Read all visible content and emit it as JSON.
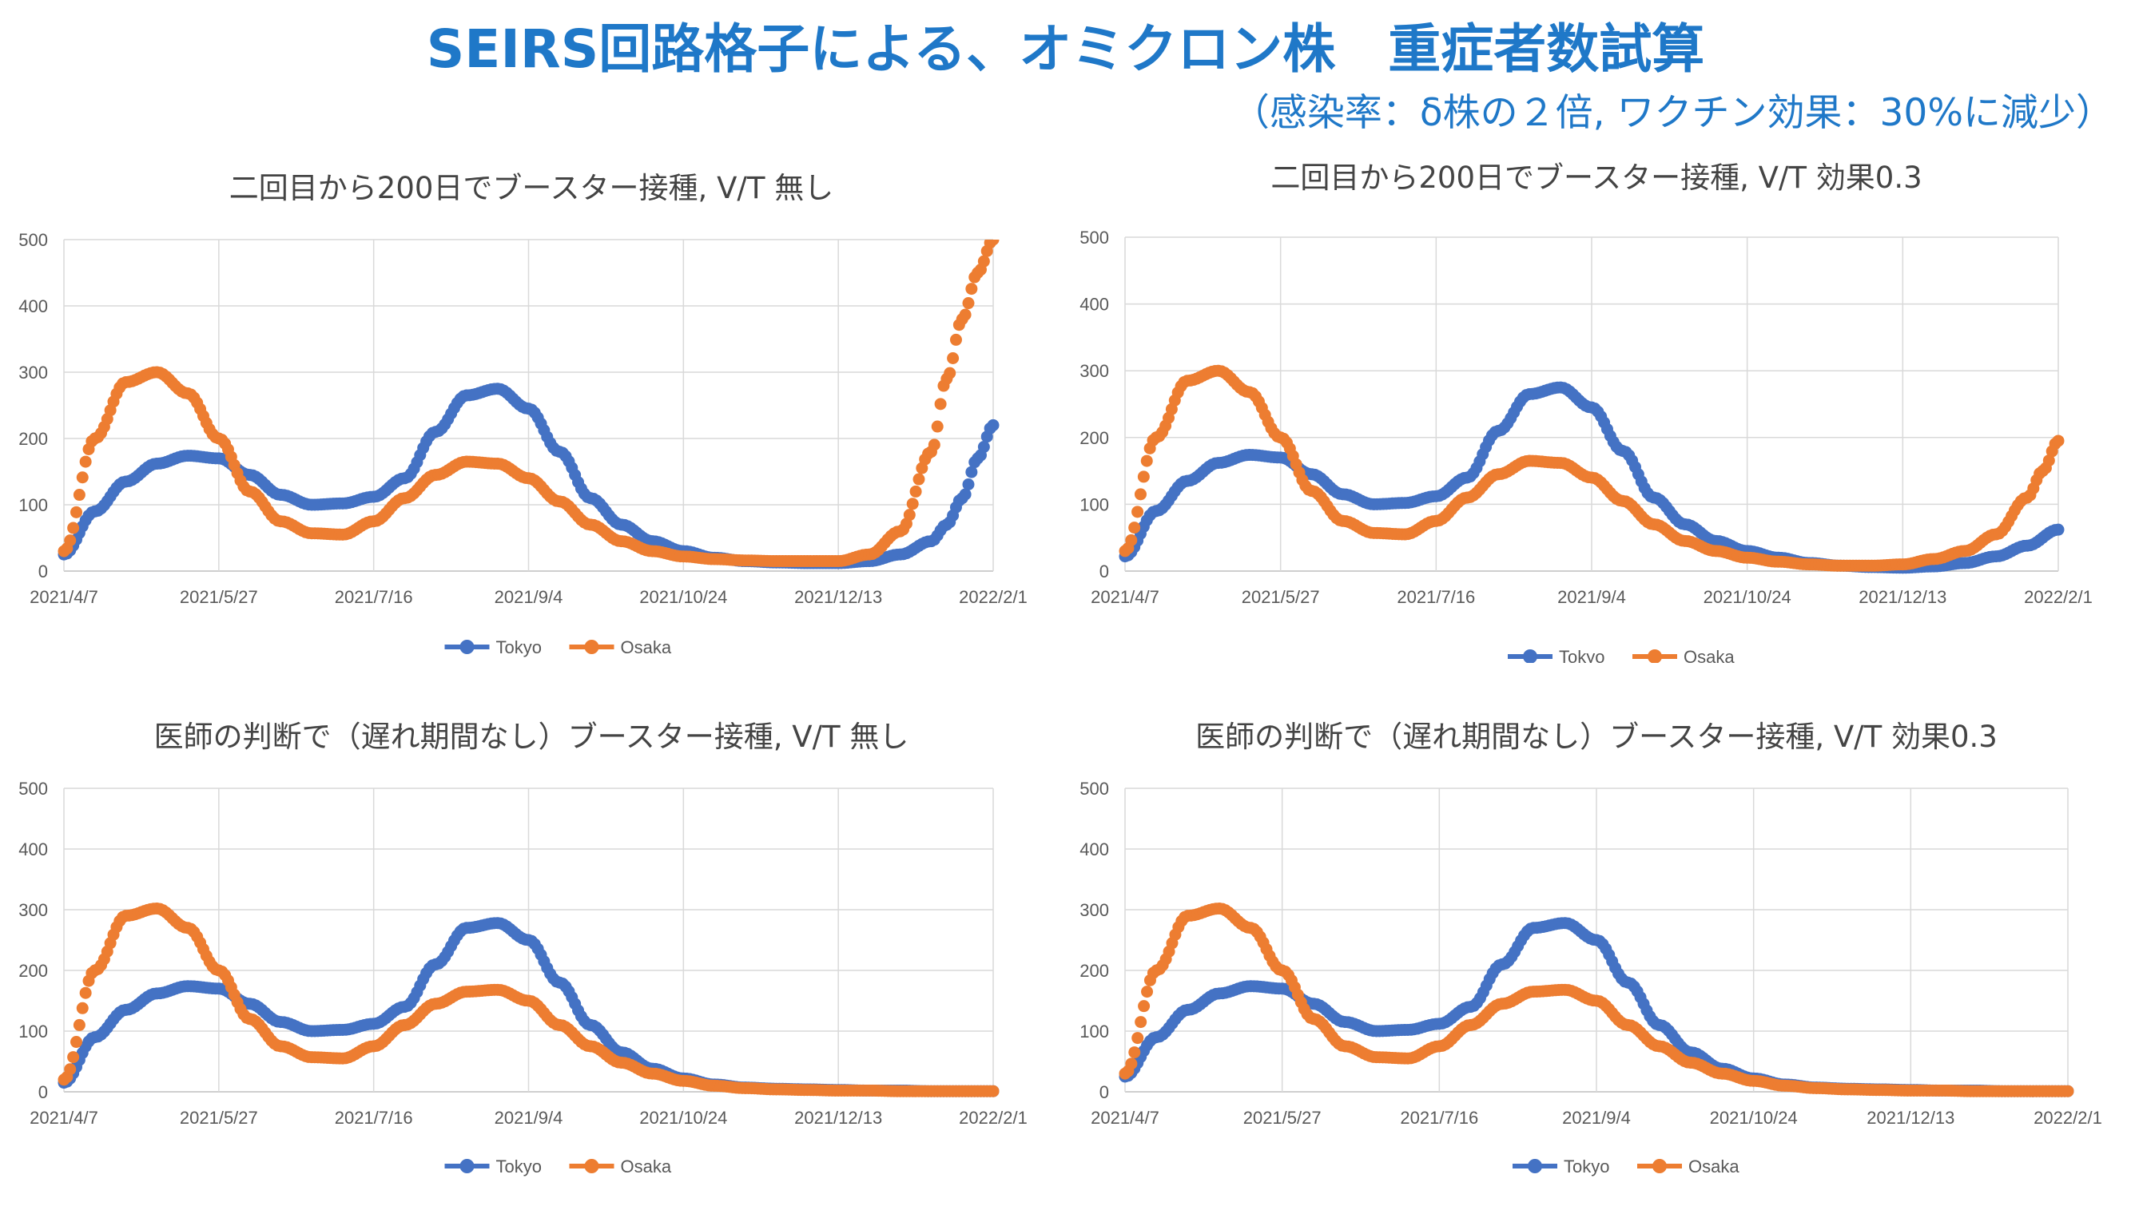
{
  "title": "SEIRS回路格子による、オミクロン株　重症者数試算",
  "subtitle": "（感染率：δ株の２倍, ワクチン効果：30%に減少）",
  "chart_data": [
    {
      "type": "line",
      "title": "二回目から200日でブースター接種, V/T 無し",
      "x_ticks": [
        "2021/4/7",
        "2021/5/27",
        "2021/7/16",
        "2021/9/4",
        "2021/10/24",
        "2021/12/13",
        "2022/2/1"
      ],
      "x_range": [
        "2021/4/7",
        "2022/2/1"
      ],
      "ylim": [
        0,
        500
      ],
      "y_ticks": [
        0,
        100,
        200,
        300,
        400,
        500
      ],
      "grid": true,
      "legend": "bottom",
      "series": [
        {
          "name": "Tokyo",
          "color": "#4472C4",
          "x": [
            "2021/4/7",
            "2021/4/17",
            "2021/4/27",
            "2021/5/7",
            "2021/5/17",
            "2021/5/27",
            "2021/6/6",
            "2021/6/16",
            "2021/6/26",
            "2021/7/6",
            "2021/7/16",
            "2021/7/26",
            "2021/8/5",
            "2021/8/15",
            "2021/8/25",
            "2021/9/4",
            "2021/9/14",
            "2021/9/24",
            "2021/10/4",
            "2021/10/14",
            "2021/10/24",
            "2021/11/3",
            "2021/11/13",
            "2021/11/23",
            "2021/12/3",
            "2021/12/13",
            "2021/12/23",
            "2022/1/2",
            "2022/1/12",
            "2022/1/17",
            "2022/1/22",
            "2022/1/27",
            "2022/2/1"
          ],
          "y": [
            25,
            90,
            135,
            162,
            174,
            170,
            145,
            115,
            100,
            102,
            112,
            140,
            210,
            265,
            275,
            245,
            180,
            110,
            70,
            45,
            30,
            20,
            15,
            13,
            12,
            12,
            15,
            25,
            45,
            70,
            110,
            170,
            220
          ]
        },
        {
          "name": "Osaka",
          "color": "#ED7D31",
          "x": [
            "2021/4/7",
            "2021/4/17",
            "2021/4/27",
            "2021/5/7",
            "2021/5/17",
            "2021/5/27",
            "2021/6/6",
            "2021/6/16",
            "2021/6/26",
            "2021/7/6",
            "2021/7/16",
            "2021/7/26",
            "2021/8/5",
            "2021/8/15",
            "2021/8/25",
            "2021/9/4",
            "2021/9/14",
            "2021/9/24",
            "2021/10/4",
            "2021/10/14",
            "2021/10/24",
            "2021/11/3",
            "2021/11/13",
            "2021/11/23",
            "2021/12/3",
            "2021/12/13",
            "2021/12/23",
            "2022/1/2",
            "2022/1/12",
            "2022/1/17",
            "2022/1/22",
            "2022/1/27",
            "2022/2/1"
          ],
          "y": [
            30,
            200,
            285,
            300,
            268,
            200,
            120,
            75,
            57,
            55,
            75,
            110,
            145,
            165,
            162,
            140,
            105,
            70,
            45,
            30,
            22,
            18,
            16,
            15,
            15,
            15,
            25,
            60,
            180,
            290,
            380,
            450,
            500
          ]
        }
      ]
    },
    {
      "type": "line",
      "title": "二回目から200日でブースター接種, V/T 効果0.3",
      "x_ticks": [
        "2021/4/7",
        "2021/5/27",
        "2021/7/16",
        "2021/9/4",
        "2021/10/24",
        "2021/12/13",
        "2022/2/1"
      ],
      "x_range": [
        "2021/4/7",
        "2022/2/1"
      ],
      "ylim": [
        0,
        500
      ],
      "y_ticks": [
        0,
        100,
        200,
        300,
        400,
        500
      ],
      "grid": true,
      "legend": "bottom",
      "series": [
        {
          "name": "Tokyo",
          "color": "#4472C4",
          "x": [
            "2021/4/7",
            "2021/4/17",
            "2021/4/27",
            "2021/5/7",
            "2021/5/17",
            "2021/5/27",
            "2021/6/6",
            "2021/6/16",
            "2021/6/26",
            "2021/7/6",
            "2021/7/16",
            "2021/7/26",
            "2021/8/5",
            "2021/8/15",
            "2021/8/25",
            "2021/9/4",
            "2021/9/14",
            "2021/9/24",
            "2021/10/4",
            "2021/10/14",
            "2021/10/24",
            "2021/11/3",
            "2021/11/13",
            "2021/11/23",
            "2021/12/3",
            "2021/12/13",
            "2021/12/23",
            "2022/1/2",
            "2022/1/12",
            "2022/1/22",
            "2022/2/1"
          ],
          "y": [
            22,
            90,
            135,
            162,
            174,
            170,
            145,
            115,
            100,
            102,
            112,
            140,
            210,
            265,
            275,
            245,
            180,
            110,
            70,
            45,
            30,
            20,
            12,
            8,
            6,
            5,
            7,
            12,
            22,
            38,
            62
          ]
        },
        {
          "name": "Osaka",
          "color": "#ED7D31",
          "x": [
            "2021/4/7",
            "2021/4/17",
            "2021/4/27",
            "2021/5/7",
            "2021/5/17",
            "2021/5/27",
            "2021/6/6",
            "2021/6/16",
            "2021/6/26",
            "2021/7/6",
            "2021/7/16",
            "2021/7/26",
            "2021/8/5",
            "2021/8/15",
            "2021/8/25",
            "2021/9/4",
            "2021/9/14",
            "2021/9/24",
            "2021/10/4",
            "2021/10/14",
            "2021/10/24",
            "2021/11/3",
            "2021/11/13",
            "2021/11/23",
            "2021/12/3",
            "2021/12/13",
            "2021/12/23",
            "2022/1/2",
            "2022/1/12",
            "2022/1/22",
            "2022/1/27",
            "2022/2/1"
          ],
          "y": [
            30,
            200,
            285,
            300,
            268,
            200,
            120,
            75,
            57,
            55,
            75,
            110,
            145,
            165,
            162,
            140,
            105,
            70,
            45,
            30,
            20,
            14,
            10,
            8,
            8,
            10,
            18,
            30,
            55,
            110,
            150,
            195
          ]
        }
      ]
    },
    {
      "type": "line",
      "title": "医師の判断で（遅れ期間なし）ブースター接種, V/T 無し",
      "x_ticks": [
        "2021/4/7",
        "2021/5/27",
        "2021/7/16",
        "2021/9/4",
        "2021/10/24",
        "2021/12/13",
        "2022/2/1"
      ],
      "x_range": [
        "2021/4/7",
        "2022/2/1"
      ],
      "ylim": [
        0,
        500
      ],
      "y_ticks": [
        0,
        100,
        200,
        300,
        400,
        500
      ],
      "grid": true,
      "legend": "bottom",
      "series": [
        {
          "name": "Tokyo",
          "color": "#4472C4",
          "x": [
            "2021/4/7",
            "2021/4/17",
            "2021/4/27",
            "2021/5/7",
            "2021/5/17",
            "2021/5/27",
            "2021/6/6",
            "2021/6/16",
            "2021/6/26",
            "2021/7/6",
            "2021/7/16",
            "2021/7/26",
            "2021/8/5",
            "2021/8/15",
            "2021/8/25",
            "2021/9/4",
            "2021/9/14",
            "2021/9/24",
            "2021/10/4",
            "2021/10/14",
            "2021/10/24",
            "2021/11/3",
            "2021/11/13",
            "2021/11/23",
            "2021/12/3",
            "2021/12/13",
            "2021/12/23",
            "2022/1/2",
            "2022/1/12",
            "2022/1/22",
            "2022/2/1"
          ],
          "y": [
            15,
            90,
            135,
            162,
            174,
            170,
            145,
            115,
            100,
            102,
            112,
            140,
            210,
            270,
            278,
            250,
            180,
            110,
            65,
            38,
            22,
            12,
            7,
            5,
            4,
            3,
            2,
            2,
            1,
            1,
            1
          ]
        },
        {
          "name": "Osaka",
          "color": "#ED7D31",
          "x": [
            "2021/4/7",
            "2021/4/17",
            "2021/4/27",
            "2021/5/7",
            "2021/5/17",
            "2021/5/27",
            "2021/6/6",
            "2021/6/16",
            "2021/6/26",
            "2021/7/6",
            "2021/7/16",
            "2021/7/26",
            "2021/8/5",
            "2021/8/15",
            "2021/8/25",
            "2021/9/4",
            "2021/9/14",
            "2021/9/24",
            "2021/10/4",
            "2021/10/14",
            "2021/10/24",
            "2021/11/3",
            "2021/11/13",
            "2021/11/23",
            "2021/12/3",
            "2021/12/13",
            "2021/12/23",
            "2022/1/2",
            "2022/1/12",
            "2022/1/22",
            "2022/2/1"
          ],
          "y": [
            20,
            200,
            290,
            302,
            270,
            200,
            120,
            75,
            57,
            55,
            75,
            110,
            145,
            165,
            168,
            150,
            110,
            75,
            48,
            30,
            18,
            10,
            6,
            4,
            3,
            2,
            2,
            1,
            1,
            1,
            1
          ]
        }
      ]
    },
    {
      "type": "line",
      "title": "医師の判断で（遅れ期間なし）ブースター接種, V/T 効果0.3",
      "x_ticks": [
        "2021/4/7",
        "2021/5/27",
        "2021/7/16",
        "2021/9/4",
        "2021/10/24",
        "2021/12/13",
        "2022/2/1"
      ],
      "x_range": [
        "2021/4/7",
        "2022/2/1"
      ],
      "ylim": [
        0,
        500
      ],
      "y_ticks": [
        0,
        100,
        200,
        300,
        400,
        500
      ],
      "grid": true,
      "legend": "bottom",
      "series": [
        {
          "name": "Tokyo",
          "color": "#4472C4",
          "x": [
            "2021/4/7",
            "2021/4/17",
            "2021/4/27",
            "2021/5/7",
            "2021/5/17",
            "2021/5/27",
            "2021/6/6",
            "2021/6/16",
            "2021/6/26",
            "2021/7/6",
            "2021/7/16",
            "2021/7/26",
            "2021/8/5",
            "2021/8/15",
            "2021/8/25",
            "2021/9/4",
            "2021/9/14",
            "2021/9/24",
            "2021/10/4",
            "2021/10/14",
            "2021/10/24",
            "2021/11/3",
            "2021/11/13",
            "2021/11/23",
            "2021/12/3",
            "2021/12/13",
            "2021/12/23",
            "2022/1/2",
            "2022/1/12",
            "2022/1/22",
            "2022/2/1"
          ],
          "y": [
            25,
            90,
            135,
            162,
            174,
            170,
            145,
            115,
            100,
            102,
            112,
            140,
            210,
            270,
            278,
            250,
            180,
            110,
            65,
            38,
            22,
            12,
            7,
            5,
            4,
            3,
            2,
            2,
            1,
            1,
            1
          ]
        },
        {
          "name": "Osaka",
          "color": "#ED7D31",
          "x": [
            "2021/4/7",
            "2021/4/17",
            "2021/4/27",
            "2021/5/7",
            "2021/5/17",
            "2021/5/27",
            "2021/6/6",
            "2021/6/16",
            "2021/6/26",
            "2021/7/6",
            "2021/7/16",
            "2021/7/26",
            "2021/8/5",
            "2021/8/15",
            "2021/8/25",
            "2021/9/4",
            "2021/9/14",
            "2021/9/24",
            "2021/10/4",
            "2021/10/14",
            "2021/10/24",
            "2021/11/3",
            "2021/11/13",
            "2021/11/23",
            "2021/12/3",
            "2021/12/13",
            "2021/12/23",
            "2022/1/2",
            "2022/1/12",
            "2022/1/22",
            "2022/2/1"
          ],
          "y": [
            30,
            200,
            290,
            302,
            270,
            200,
            120,
            75,
            57,
            55,
            75,
            110,
            145,
            165,
            168,
            150,
            110,
            75,
            48,
            30,
            18,
            10,
            6,
            4,
            3,
            2,
            2,
            1,
            1,
            1,
            1
          ]
        }
      ]
    }
  ]
}
